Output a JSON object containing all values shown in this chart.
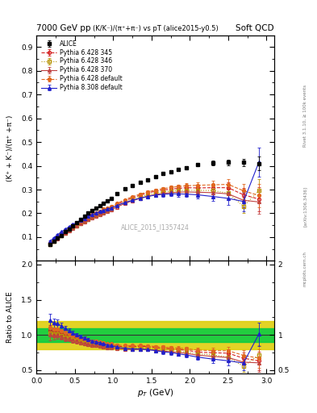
{
  "title_left": "7000 GeV pp",
  "title_right": "Soft QCD",
  "plot_title": "(K/K⁻)/(π⁺+π⁻) vs pT (alice2015-y0.5)",
  "ylabel_main": "(K⁺ + K⁻)/(π⁺ +π⁻)",
  "ylabel_ratio": "Ratio to ALICE",
  "xlabel": "p_T (GeV)",
  "right_label1": "Rivet 3.1.10, ≥ 100k events",
  "right_label2": "[arXiv:1306.3436]",
  "right_label3": "mcplots.cern.ch",
  "watermark": "ALICE_2015_I1357424",
  "ylim_main": [
    0.0,
    0.95
  ],
  "ylim_ratio": [
    0.45,
    2.05
  ],
  "xlim": [
    0.0,
    3.1
  ],
  "alice_x": [
    0.175,
    0.225,
    0.275,
    0.325,
    0.375,
    0.425,
    0.475,
    0.525,
    0.575,
    0.625,
    0.675,
    0.725,
    0.775,
    0.825,
    0.875,
    0.925,
    0.975,
    1.05,
    1.15,
    1.25,
    1.35,
    1.45,
    1.55,
    1.65,
    1.75,
    1.85,
    1.95,
    2.1,
    2.3,
    2.5,
    2.7,
    2.9
  ],
  "alice_y": [
    0.068,
    0.083,
    0.095,
    0.108,
    0.122,
    0.135,
    0.149,
    0.162,
    0.175,
    0.188,
    0.2,
    0.212,
    0.222,
    0.233,
    0.243,
    0.254,
    0.262,
    0.282,
    0.302,
    0.318,
    0.33,
    0.342,
    0.356,
    0.368,
    0.376,
    0.385,
    0.392,
    0.405,
    0.412,
    0.415,
    0.415,
    0.41
  ],
  "alice_yerr": [
    0.005,
    0.004,
    0.004,
    0.004,
    0.004,
    0.004,
    0.004,
    0.004,
    0.004,
    0.004,
    0.004,
    0.004,
    0.004,
    0.004,
    0.004,
    0.004,
    0.004,
    0.004,
    0.005,
    0.005,
    0.005,
    0.005,
    0.006,
    0.006,
    0.006,
    0.007,
    0.007,
    0.008,
    0.01,
    0.012,
    0.015,
    0.03
  ],
  "p6_345_x": [
    0.175,
    0.225,
    0.275,
    0.325,
    0.375,
    0.425,
    0.475,
    0.525,
    0.575,
    0.625,
    0.675,
    0.725,
    0.775,
    0.825,
    0.875,
    0.925,
    0.975,
    1.05,
    1.15,
    1.25,
    1.35,
    1.45,
    1.55,
    1.65,
    1.75,
    1.85,
    1.95,
    2.1,
    2.3,
    2.5,
    2.7,
    2.9
  ],
  "p6_345_y": [
    0.072,
    0.086,
    0.098,
    0.11,
    0.121,
    0.132,
    0.143,
    0.153,
    0.162,
    0.172,
    0.18,
    0.189,
    0.197,
    0.205,
    0.212,
    0.218,
    0.225,
    0.237,
    0.252,
    0.265,
    0.276,
    0.286,
    0.293,
    0.298,
    0.302,
    0.305,
    0.308,
    0.307,
    0.308,
    0.308,
    0.278,
    0.26
  ],
  "p6_345_yerr": [
    0.002,
    0.002,
    0.002,
    0.002,
    0.002,
    0.002,
    0.002,
    0.002,
    0.002,
    0.002,
    0.002,
    0.002,
    0.002,
    0.002,
    0.002,
    0.002,
    0.003,
    0.003,
    0.003,
    0.004,
    0.004,
    0.005,
    0.006,
    0.007,
    0.008,
    0.009,
    0.01,
    0.012,
    0.016,
    0.022,
    0.03,
    0.05
  ],
  "p6_346_x": [
    0.175,
    0.225,
    0.275,
    0.325,
    0.375,
    0.425,
    0.475,
    0.525,
    0.575,
    0.625,
    0.675,
    0.725,
    0.775,
    0.825,
    0.875,
    0.925,
    0.975,
    1.05,
    1.15,
    1.25,
    1.35,
    1.45,
    1.55,
    1.65,
    1.75,
    1.85,
    1.95,
    2.1,
    2.3,
    2.5,
    2.7,
    2.9
  ],
  "p6_346_y": [
    0.07,
    0.084,
    0.096,
    0.107,
    0.118,
    0.129,
    0.139,
    0.149,
    0.158,
    0.167,
    0.176,
    0.184,
    0.192,
    0.199,
    0.206,
    0.213,
    0.219,
    0.231,
    0.246,
    0.258,
    0.269,
    0.278,
    0.285,
    0.29,
    0.294,
    0.296,
    0.297,
    0.297,
    0.296,
    0.285,
    0.23,
    0.295
  ],
  "p6_346_yerr": [
    0.002,
    0.002,
    0.002,
    0.002,
    0.002,
    0.002,
    0.002,
    0.002,
    0.002,
    0.002,
    0.002,
    0.002,
    0.002,
    0.002,
    0.002,
    0.002,
    0.003,
    0.003,
    0.003,
    0.004,
    0.004,
    0.005,
    0.006,
    0.007,
    0.008,
    0.009,
    0.01,
    0.012,
    0.016,
    0.022,
    0.03,
    0.05
  ],
  "p6_370_x": [
    0.175,
    0.225,
    0.275,
    0.325,
    0.375,
    0.425,
    0.475,
    0.525,
    0.575,
    0.625,
    0.675,
    0.725,
    0.775,
    0.825,
    0.875,
    0.925,
    0.975,
    1.05,
    1.15,
    1.25,
    1.35,
    1.45,
    1.55,
    1.65,
    1.75,
    1.85,
    1.95,
    2.1,
    2.3,
    2.5,
    2.7,
    2.9
  ],
  "p6_370_y": [
    0.068,
    0.082,
    0.094,
    0.105,
    0.116,
    0.127,
    0.137,
    0.147,
    0.156,
    0.165,
    0.173,
    0.181,
    0.189,
    0.196,
    0.203,
    0.209,
    0.215,
    0.227,
    0.241,
    0.253,
    0.263,
    0.272,
    0.279,
    0.284,
    0.287,
    0.289,
    0.29,
    0.289,
    0.287,
    0.282,
    0.255,
    0.248
  ],
  "p6_370_yerr": [
    0.002,
    0.002,
    0.002,
    0.002,
    0.002,
    0.002,
    0.002,
    0.002,
    0.002,
    0.002,
    0.002,
    0.002,
    0.002,
    0.002,
    0.002,
    0.002,
    0.003,
    0.003,
    0.003,
    0.004,
    0.004,
    0.005,
    0.006,
    0.007,
    0.008,
    0.009,
    0.01,
    0.012,
    0.016,
    0.022,
    0.03,
    0.05
  ],
  "p6_def_x": [
    0.175,
    0.225,
    0.275,
    0.325,
    0.375,
    0.425,
    0.475,
    0.525,
    0.575,
    0.625,
    0.675,
    0.725,
    0.775,
    0.825,
    0.875,
    0.925,
    0.975,
    1.05,
    1.15,
    1.25,
    1.35,
    1.45,
    1.55,
    1.65,
    1.75,
    1.85,
    1.95,
    2.1,
    2.3,
    2.5,
    2.7,
    2.9
  ],
  "p6_def_y": [
    0.075,
    0.09,
    0.103,
    0.115,
    0.126,
    0.137,
    0.148,
    0.158,
    0.167,
    0.177,
    0.185,
    0.194,
    0.202,
    0.209,
    0.217,
    0.223,
    0.229,
    0.242,
    0.257,
    0.27,
    0.281,
    0.29,
    0.298,
    0.304,
    0.309,
    0.313,
    0.316,
    0.318,
    0.32,
    0.322,
    0.295,
    0.275
  ],
  "p6_def_yerr": [
    0.002,
    0.002,
    0.002,
    0.002,
    0.002,
    0.002,
    0.002,
    0.002,
    0.002,
    0.002,
    0.002,
    0.002,
    0.002,
    0.002,
    0.002,
    0.002,
    0.003,
    0.003,
    0.003,
    0.004,
    0.004,
    0.005,
    0.006,
    0.007,
    0.008,
    0.009,
    0.01,
    0.012,
    0.016,
    0.022,
    0.03,
    0.05
  ],
  "p8_def_x": [
    0.175,
    0.225,
    0.275,
    0.325,
    0.375,
    0.425,
    0.475,
    0.525,
    0.575,
    0.625,
    0.675,
    0.725,
    0.775,
    0.825,
    0.875,
    0.925,
    0.975,
    1.05,
    1.15,
    1.25,
    1.35,
    1.45,
    1.55,
    1.65,
    1.75,
    1.85,
    1.95,
    2.1,
    2.3,
    2.5,
    2.7,
    2.9
  ],
  "p8_def_y": [
    0.082,
    0.097,
    0.11,
    0.122,
    0.133,
    0.143,
    0.153,
    0.162,
    0.171,
    0.179,
    0.187,
    0.194,
    0.201,
    0.207,
    0.213,
    0.218,
    0.223,
    0.233,
    0.245,
    0.255,
    0.264,
    0.271,
    0.277,
    0.28,
    0.282,
    0.282,
    0.281,
    0.278,
    0.271,
    0.263,
    0.25,
    0.415
  ],
  "p8_def_yerr": [
    0.003,
    0.003,
    0.003,
    0.003,
    0.003,
    0.003,
    0.003,
    0.003,
    0.003,
    0.003,
    0.003,
    0.003,
    0.003,
    0.003,
    0.003,
    0.003,
    0.003,
    0.003,
    0.004,
    0.005,
    0.006,
    0.007,
    0.008,
    0.009,
    0.01,
    0.011,
    0.012,
    0.015,
    0.02,
    0.028,
    0.04,
    0.06
  ],
  "color_alice": "#000000",
  "color_p6_345": "#d42020",
  "color_p6_346": "#b8960c",
  "color_p6_370": "#c04040",
  "color_p6_def": "#e06820",
  "color_p8_def": "#2020cc",
  "color_band_green": "#00cc44",
  "color_band_yellow": "#ddcc00",
  "bg_color": "#ffffff"
}
